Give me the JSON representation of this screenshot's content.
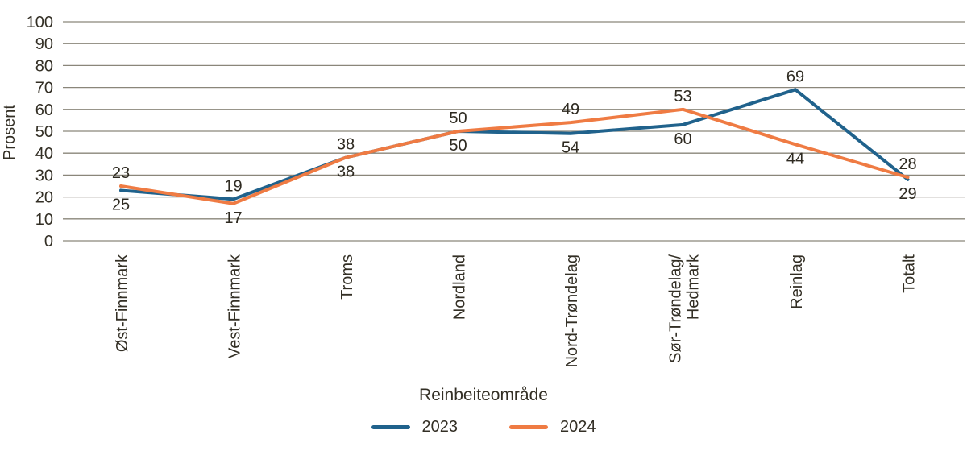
{
  "chart_data": {
    "type": "line",
    "xlabel": "Reinbeiteområde",
    "ylabel": "Prosent",
    "ylim": [
      0,
      100
    ],
    "yticks": [
      0,
      10,
      20,
      30,
      40,
      50,
      60,
      70,
      80,
      90,
      100
    ],
    "categories": [
      "Øst-Finnmark",
      "Vest-Finnmark",
      "Troms",
      "Nordland",
      "Nord-Trøndelag",
      "Sør-Trøndelag/\nHedmark",
      "Reinlag",
      "Totalt"
    ],
    "series": [
      {
        "name": "2023",
        "color": "#20628c",
        "label_position": "above",
        "values": [
          23,
          19,
          38,
          50,
          49,
          53,
          69,
          28
        ]
      },
      {
        "name": "2024",
        "color": "#ef7b43",
        "label_position": "below",
        "values": [
          25,
          17,
          38,
          50,
          54,
          60,
          44,
          29
        ]
      }
    ],
    "grid": true,
    "gridline_color": "#8a867a",
    "text_color": "#332f25",
    "legend_position": "bottom"
  }
}
